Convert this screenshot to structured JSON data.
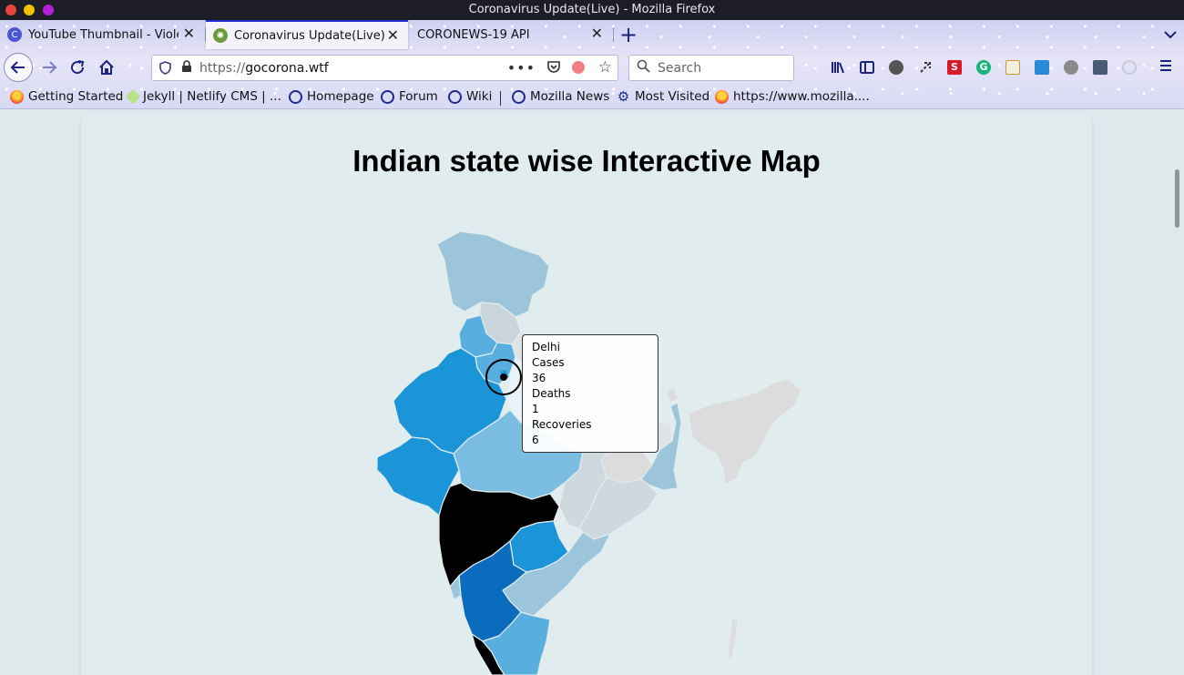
{
  "window": {
    "title": "Coronavirus Update(Live) - Mozilla Firefox"
  },
  "tabs": [
    {
      "label": "YouTube Thumbnail - Viole",
      "icon": "youtube-thumbnail-favicon",
      "color": "#4a56d6"
    },
    {
      "label": "Coronavirus Update(Live)",
      "icon": "coronavirus-favicon",
      "color": "#6a9a3a"
    },
    {
      "label": "CORONEWS-19 API",
      "icon": "",
      "color": ""
    }
  ],
  "navbar": {
    "url_protocol": "https://",
    "url_host": "gocorona.wtf",
    "search_placeholder": "Search"
  },
  "bookmarks": [
    {
      "label": "Getting Started",
      "icon": "firefox-icon"
    },
    {
      "label": "Jekyll | Netlify CMS | ...",
      "icon": "netlify-icon"
    },
    {
      "label": "Homepage",
      "icon": "globe-icon"
    },
    {
      "label": "Forum",
      "icon": "globe-icon"
    },
    {
      "label": "Wiki",
      "icon": "globe-icon"
    },
    {
      "label": "Mozilla News",
      "icon": "globe-icon"
    },
    {
      "label": "Most Visited",
      "icon": "gear-icon"
    },
    {
      "label": "https://www.mozilla....",
      "icon": "firefox-icon"
    }
  ],
  "page": {
    "title": "Indian state wise Interactive Map"
  },
  "tooltip": {
    "state": "Delhi",
    "cases_label": "Cases",
    "cases": "36",
    "deaths_label": "Deaths",
    "deaths": "1",
    "recoveries_label": "Recoveries",
    "recoveries": "6"
  },
  "colors": {
    "accent": "#1d2fd6",
    "map_high": "#000000",
    "map_mid_high": "#0b6bbd",
    "map_mid": "#1c95d8",
    "map_low_mid": "#58afdf",
    "map_low": "#9cc5dc",
    "map_none": "#d8d8d8"
  }
}
